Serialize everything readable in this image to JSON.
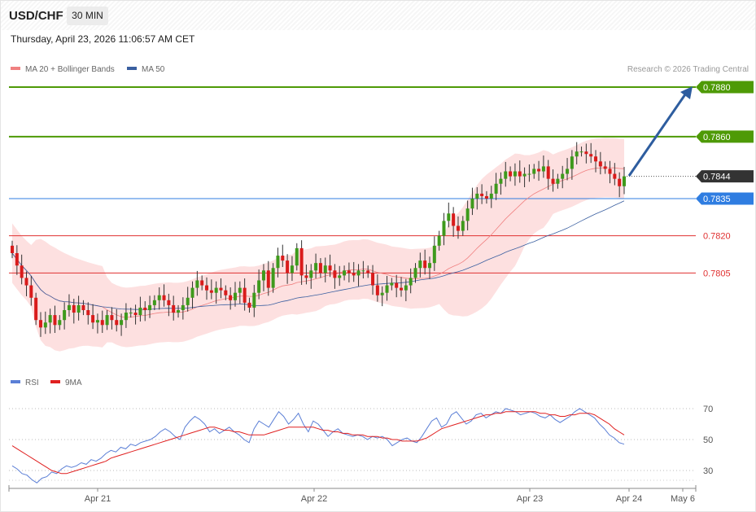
{
  "header": {
    "symbol": "USD/CHF",
    "timeframe": "30 MIN"
  },
  "datetime": "Thursday, April 23, 2026 11:06:57 AM CET",
  "legend": {
    "ma20_label": "MA 20 + Bollinger Bands",
    "ma50_label": "MA 50",
    "ma20_color": "#f08080",
    "ma50_color": "#3a5fa0",
    "copyright": "Research © 2026 Trading Central"
  },
  "rsi_legend": {
    "rsi_label": "RSI",
    "ma_label": "9MA",
    "rsi_color": "#5b7fd6",
    "ma_color": "#e02020"
  },
  "chart_data": [
    {
      "type": "candlestick",
      "symbol": "USD/CHF",
      "interval": "30 MIN",
      "y_range": [
        0.777,
        0.7887
      ],
      "levels": [
        {
          "label": "0.7880",
          "value": 0.788,
          "kind": "resistance",
          "color": "#4e9a06"
        },
        {
          "label": "0.7860",
          "value": 0.786,
          "kind": "resistance",
          "color": "#4e9a06"
        },
        {
          "label": "0.7844",
          "value": 0.7844,
          "kind": "last-price",
          "color": "#333333"
        },
        {
          "label": "0.7835",
          "value": 0.7835,
          "kind": "pivot",
          "color": "#2f7de1"
        },
        {
          "label": "0.7820",
          "value": 0.782,
          "kind": "support",
          "color": "#e03030"
        },
        {
          "label": "0.7805",
          "value": 0.7805,
          "kind": "support",
          "color": "#e03030"
        }
      ],
      "x_labels": [
        "Apr 21",
        "Apr 22",
        "Apr 23",
        "Apr 24",
        "May 6"
      ],
      "candles_close_path": [
        0.7813,
        0.7808,
        0.7803,
        0.78,
        0.7795,
        0.7786,
        0.7783,
        0.7785,
        0.7788,
        0.7784,
        0.7786,
        0.779,
        0.7792,
        0.7789,
        0.7792,
        0.779,
        0.7788,
        0.7785,
        0.7786,
        0.7784,
        0.7788,
        0.7786,
        0.7784,
        0.7786,
        0.7789,
        0.7789,
        0.7788,
        0.7791,
        0.779,
        0.7792,
        0.7794,
        0.7796,
        0.7794,
        0.7792,
        0.7789,
        0.779,
        0.7792,
        0.7795,
        0.7799,
        0.7802,
        0.78,
        0.7798,
        0.7797,
        0.7799,
        0.7798,
        0.7796,
        0.7794,
        0.7797,
        0.7799,
        0.7793,
        0.7791,
        0.7797,
        0.7802,
        0.7806,
        0.7799,
        0.7807,
        0.7812,
        0.781,
        0.7805,
        0.7808,
        0.7815,
        0.7804,
        0.7803,
        0.7806,
        0.7809,
        0.7805,
        0.7808,
        0.7806,
        0.7803,
        0.7804,
        0.7806,
        0.7805,
        0.7804,
        0.7806,
        0.7806,
        0.7805,
        0.78,
        0.7796,
        0.7797,
        0.78,
        0.7801,
        0.7799,
        0.7798,
        0.78,
        0.7803,
        0.7807,
        0.781,
        0.7807,
        0.7809,
        0.7816,
        0.782,
        0.7826,
        0.7829,
        0.7824,
        0.7822,
        0.7826,
        0.7831,
        0.7835,
        0.7837,
        0.7836,
        0.7835,
        0.7837,
        0.7841,
        0.7843,
        0.7846,
        0.7844,
        0.7846,
        0.7844,
        0.7845,
        0.7845,
        0.7847,
        0.7846,
        0.7848,
        0.7843,
        0.7841,
        0.7843,
        0.7845,
        0.7847,
        0.7852,
        0.7854,
        0.7854,
        0.7853,
        0.7852,
        0.785,
        0.7848,
        0.7847,
        0.7845,
        0.7843,
        0.784,
        0.7844
      ]
    },
    {
      "type": "line",
      "title": "RSI",
      "y_ticks": [
        70,
        50,
        30
      ],
      "ylim": [
        18,
        80
      ],
      "series": [
        {
          "name": "RSI",
          "color": "#5b7fd6",
          "values": [
            33,
            31,
            28,
            27,
            24,
            22,
            25,
            26,
            29,
            28,
            31,
            33,
            32,
            33,
            35,
            34,
            37,
            36,
            38,
            41,
            43,
            42,
            45,
            44,
            47,
            46,
            48,
            49,
            50,
            52,
            55,
            57,
            55,
            52,
            50,
            58,
            62,
            65,
            63,
            60,
            55,
            57,
            54,
            56,
            58,
            55,
            53,
            50,
            48,
            57,
            62,
            60,
            58,
            63,
            68,
            65,
            60,
            63,
            67,
            60,
            55,
            62,
            60,
            56,
            52,
            55,
            57,
            54,
            53,
            52,
            53,
            52,
            50,
            52,
            51,
            52,
            50,
            46,
            48,
            50,
            51,
            49,
            48,
            52,
            57,
            62,
            64,
            58,
            60,
            66,
            68,
            64,
            60,
            62,
            66,
            67,
            64,
            66,
            68,
            67,
            70,
            69,
            68,
            66,
            67,
            68,
            67,
            65,
            64,
            66,
            63,
            61,
            63,
            65,
            68,
            70,
            68,
            66,
            64,
            60,
            57,
            53,
            51,
            48,
            47
          ]
        },
        {
          "name": "9MA",
          "color": "#e02020",
          "values": [
            46,
            44,
            42,
            40,
            38,
            36,
            34,
            32,
            30,
            29,
            28,
            28,
            29,
            30,
            31,
            32,
            33,
            34,
            35,
            36,
            38,
            39,
            40,
            41,
            42,
            43,
            44,
            45,
            46,
            47,
            48,
            49,
            50,
            51,
            52,
            53,
            54,
            55,
            56,
            57,
            58,
            58,
            57,
            56,
            56,
            55,
            55,
            54,
            53,
            53,
            53,
            53,
            54,
            55,
            56,
            57,
            58,
            58,
            58,
            58,
            58,
            58,
            57,
            56,
            56,
            55,
            55,
            54,
            54,
            53,
            53,
            53,
            52,
            52,
            52,
            51,
            51,
            50,
            50,
            49,
            49,
            49,
            49,
            50,
            51,
            53,
            55,
            57,
            58,
            59,
            60,
            61,
            62,
            63,
            64,
            65,
            66,
            66,
            67,
            67,
            68,
            68,
            68,
            68,
            68,
            68,
            68,
            67,
            67,
            66,
            66,
            65,
            65,
            66,
            66,
            67,
            67,
            67,
            66,
            64,
            62,
            60,
            57,
            55,
            53
          ]
        }
      ]
    }
  ]
}
